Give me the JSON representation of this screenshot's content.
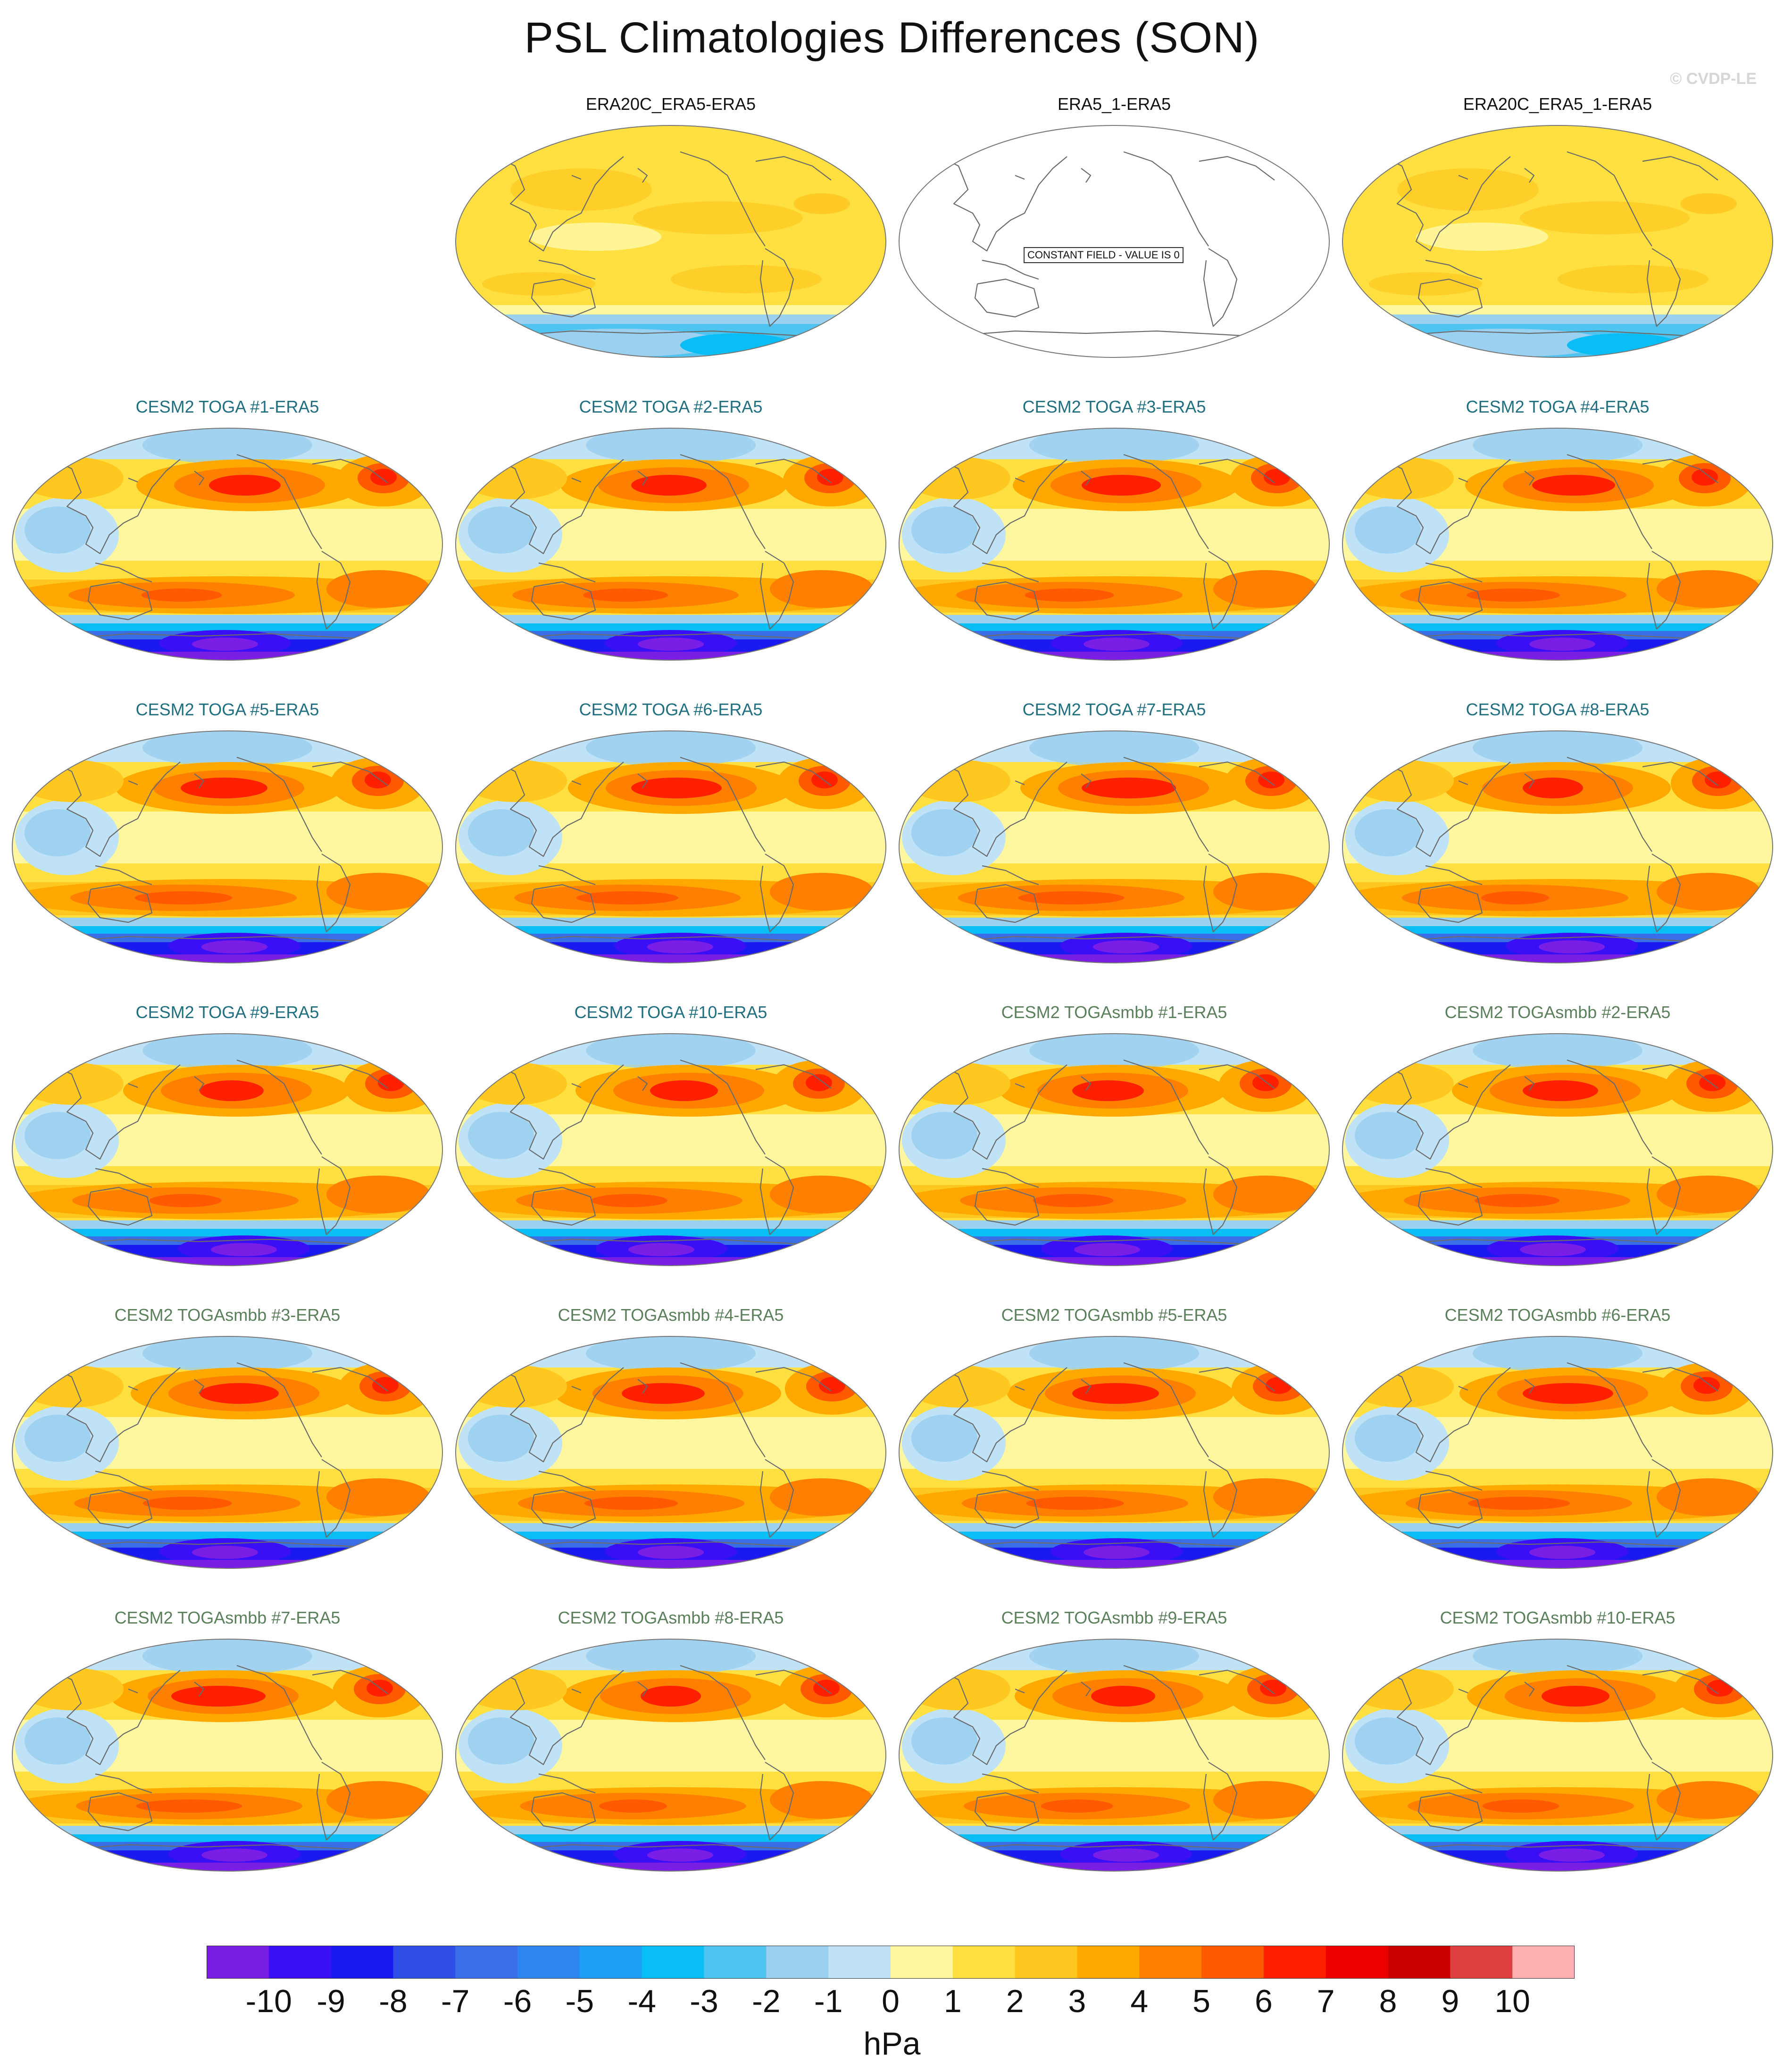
{
  "title": "PSL Climatologies Differences (SON)",
  "watermark": "© CVDP-LE",
  "panels": [
    {
      "label": "ERA20C_ERA5-ERA5",
      "group": "obs",
      "field": "obs"
    },
    {
      "label": "ERA5_1-ERA5",
      "group": "obs",
      "field": "constant"
    },
    {
      "label": "ERA20C_ERA5_1-ERA5",
      "group": "obs",
      "field": "obs"
    },
    {
      "label": "CESM2 TOGA #1-ERA5",
      "group": "toga",
      "field": "model"
    },
    {
      "label": "CESM2 TOGA #2-ERA5",
      "group": "toga",
      "field": "model"
    },
    {
      "label": "CESM2 TOGA #3-ERA5",
      "group": "toga",
      "field": "model"
    },
    {
      "label": "CESM2 TOGA #4-ERA5",
      "group": "toga",
      "field": "model"
    },
    {
      "label": "CESM2 TOGA #5-ERA5",
      "group": "toga",
      "field": "model"
    },
    {
      "label": "CESM2 TOGA #6-ERA5",
      "group": "toga",
      "field": "model"
    },
    {
      "label": "CESM2 TOGA #7-ERA5",
      "group": "toga",
      "field": "model"
    },
    {
      "label": "CESM2 TOGA #8-ERA5",
      "group": "toga",
      "field": "model"
    },
    {
      "label": "CESM2 TOGA #9-ERA5",
      "group": "toga",
      "field": "model"
    },
    {
      "label": "CESM2 TOGA #10-ERA5",
      "group": "toga",
      "field": "model"
    },
    {
      "label": "CESM2 TOGAsmbb #1-ERA5",
      "group": "smbb",
      "field": "model"
    },
    {
      "label": "CESM2 TOGAsmbb #2-ERA5",
      "group": "smbb",
      "field": "model"
    },
    {
      "label": "CESM2 TOGAsmbb #3-ERA5",
      "group": "smbb",
      "field": "model"
    },
    {
      "label": "CESM2 TOGAsmbb #4-ERA5",
      "group": "smbb",
      "field": "model"
    },
    {
      "label": "CESM2 TOGAsmbb #5-ERA5",
      "group": "smbb",
      "field": "model"
    },
    {
      "label": "CESM2 TOGAsmbb #6-ERA5",
      "group": "smbb",
      "field": "model"
    },
    {
      "label": "CESM2 TOGAsmbb #7-ERA5",
      "group": "smbb",
      "field": "model"
    },
    {
      "label": "CESM2 TOGAsmbb #8-ERA5",
      "group": "smbb",
      "field": "model"
    },
    {
      "label": "CESM2 TOGAsmbb #9-ERA5",
      "group": "smbb",
      "field": "model"
    },
    {
      "label": "CESM2 TOGAsmbb #10-ERA5",
      "group": "smbb",
      "field": "model"
    }
  ],
  "constant_field_note": "CONSTANT FIELD - VALUE IS 0",
  "label_colors": {
    "obs": "#111111",
    "toga": "#1f6f80",
    "smbb": "#5b7f5b"
  },
  "colorbar": {
    "ticks": [
      "-10",
      "-9",
      "-8",
      "-7",
      "-6",
      "-5",
      "-4",
      "-3",
      "-2",
      "-1",
      "0",
      "1",
      "2",
      "3",
      "4",
      "5",
      "6",
      "7",
      "8",
      "9",
      "10"
    ],
    "colors": [
      "#7a1ee6",
      "#3a0ff5",
      "#1a1af0",
      "#2e4ee6",
      "#3a6ee6",
      "#2f86f0",
      "#1e9ef5",
      "#08bef5",
      "#50c4f0",
      "#9ad0f0",
      "#bfe2f6",
      "#fff7a0",
      "#ffe040",
      "#ffc820",
      "#ffa800",
      "#ff8000",
      "#ff5a00",
      "#ff2000",
      "#ee0000",
      "#c80000",
      "#dd4040",
      "#ffb0b0"
    ],
    "units": "hPa"
  }
}
